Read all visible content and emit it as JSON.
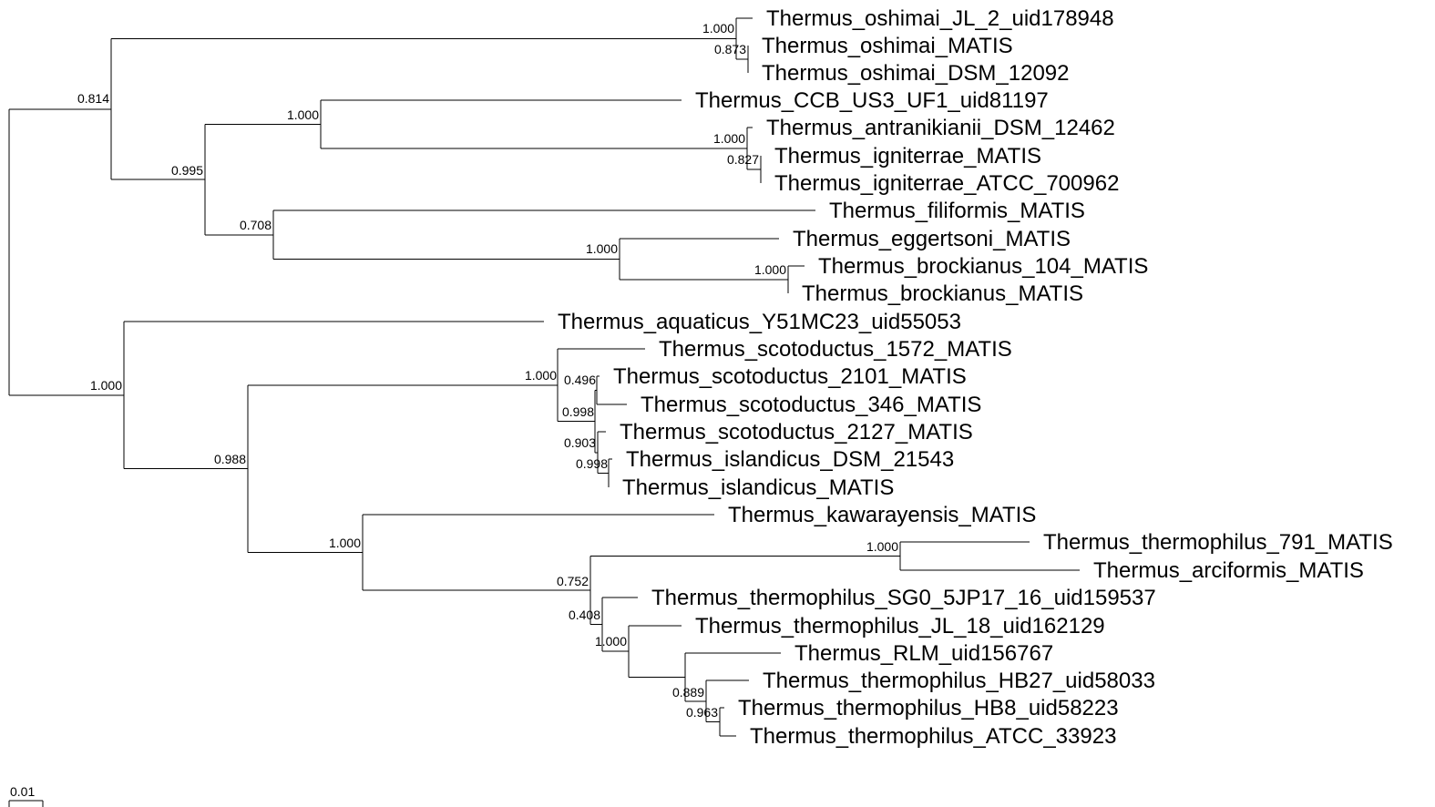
{
  "scale_bar_label": "0.01",
  "leaves": {
    "L1": "Thermus_oshimai_JL_2_uid178948",
    "L2": "Thermus_oshimai_MATIS",
    "L3": "Thermus_oshimai_DSM_12092",
    "L4": "Thermus_CCB_US3_UF1_uid81197",
    "L5": "Thermus_antranikianii_DSM_12462",
    "L6": "Thermus_igniterrae_MATIS",
    "L7": "Thermus_igniterrae_ATCC_700962",
    "L8": "Thermus_filiformis_MATIS",
    "L9": "Thermus_eggertsoni_MATIS",
    "L10": "Thermus_brockianus_104_MATIS",
    "L11": "Thermus_brockianus_MATIS",
    "L12": "Thermus_aquaticus_Y51MC23_uid55053",
    "L13": "Thermus_scotoductus_1572_MATIS",
    "L14": "Thermus_scotoductus_2101_MATIS",
    "L15": "Thermus_scotoductus_346_MATIS",
    "L16": "Thermus_scotoductus_2127_MATIS",
    "L17": "Thermus_islandicus_DSM_21543",
    "L18": "Thermus_islandicus_MATIS",
    "L19": "Thermus_kawarayensis_MATIS",
    "L20": "Thermus_thermophilus_791_MATIS",
    "L21": "Thermus_arciformis_MATIS",
    "L22": "Thermus_thermophilus_SG0_5JP17_16_uid159537",
    "L23": "Thermus_thermophilus_JL_18_uid162129",
    "L24": "Thermus_RLM_uid156767",
    "L25": "Thermus_thermophilus_HB27_uid58033",
    "L26": "Thermus_thermophilus_HB8_uid58223",
    "L27": "Thermus_thermophilus_ATCC_33923"
  },
  "supports": {
    "N_osh_all": "1.000",
    "N_osh_pair": "0.873",
    "N_clade1": "0.814",
    "N_ccb": "1.000",
    "N_ant": "1.000",
    "N_ign": "0.827",
    "N_mid": "0.995",
    "N_fil": "0.708",
    "N_egg": "1.000",
    "N_bro": "1.000",
    "N_root2": "1.000",
    "N_clade2": "0.988",
    "N_sco": "1.000",
    "N_sco_a": "0.496",
    "N_sco_b": "0.998",
    "N_sco_c": "0.903",
    "N_isl": "0.998",
    "N_kaw": "1.000",
    "N_therm": "0.752",
    "N_791": "1.000",
    "N_sg0": "0.408",
    "N_jl18": "1.000",
    "N_rlm": "0.889",
    "N_hb8": "0.963"
  }
}
